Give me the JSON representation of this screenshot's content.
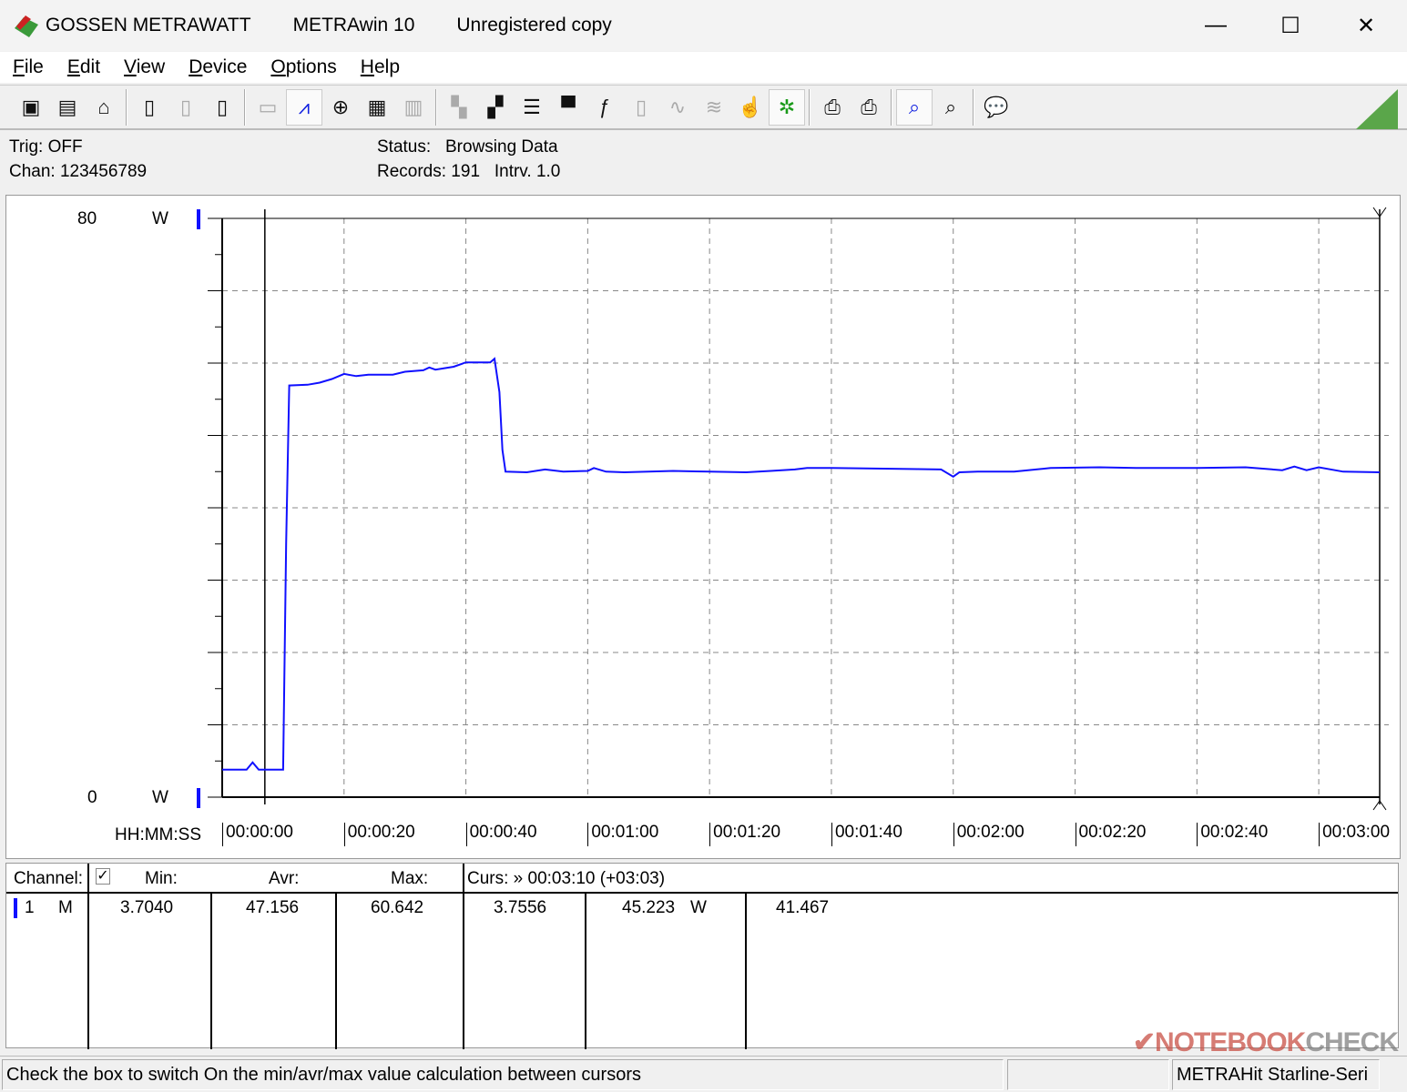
{
  "title": {
    "brand": "GOSSEN METRAWATT",
    "app": "METRAwin 10",
    "license": "Unregistered copy"
  },
  "window_controls": {
    "minimize": "—",
    "maximize": "☐",
    "close": "✕"
  },
  "menu": [
    "File",
    "Edit",
    "View",
    "Device",
    "Options",
    "Help"
  ],
  "toolbar": [
    {
      "icon": "save-icon",
      "glyph": "▣"
    },
    {
      "icon": "save-as-icon",
      "glyph": "▤"
    },
    {
      "icon": "open-icon",
      "glyph": "⌂"
    },
    "sep",
    {
      "icon": "device-read-icon",
      "glyph": "▯"
    },
    {
      "icon": "device-export-icon",
      "glyph": "▯",
      "disabled": true
    },
    {
      "icon": "device-memory-icon",
      "glyph": "▯"
    },
    "sep",
    {
      "icon": "numeric-display-icon",
      "glyph": "▭",
      "disabled": true
    },
    {
      "icon": "yt-chart-icon",
      "glyph": "⩘",
      "active": true,
      "color": "blue"
    },
    {
      "icon": "xy-chart-icon",
      "glyph": "⊕"
    },
    {
      "icon": "table-icon",
      "glyph": "▦"
    },
    {
      "icon": "histogram-icon",
      "glyph": "▥",
      "disabled": true
    },
    "sep",
    {
      "icon": "channel-settings-icon",
      "glyph": "▚",
      "disabled": true
    },
    {
      "icon": "channel-config-icon",
      "glyph": "▞"
    },
    {
      "icon": "list-settings-icon",
      "glyph": "☰"
    },
    {
      "icon": "display-settings-icon",
      "glyph": "▀"
    },
    {
      "icon": "formula-icon",
      "glyph": "ƒ"
    },
    {
      "icon": "meter-icon",
      "glyph": "▯",
      "disabled": true
    },
    {
      "icon": "signal-icon",
      "glyph": "∿",
      "disabled": true
    },
    {
      "icon": "signal-multi-icon",
      "glyph": "≋",
      "disabled": true
    },
    {
      "icon": "hand-cursor-icon",
      "glyph": "☝"
    },
    {
      "icon": "bug-icon",
      "glyph": "✲",
      "active": true,
      "color": "green"
    },
    "sep",
    {
      "icon": "print-icon",
      "glyph": "⎙"
    },
    {
      "icon": "print-preview-icon",
      "glyph": "⎙"
    },
    "sep",
    {
      "icon": "zoom-wave-icon",
      "glyph": "⌕",
      "active": true,
      "color": "blue"
    },
    {
      "icon": "zoom-icon",
      "glyph": "⌕"
    },
    "sep",
    {
      "icon": "comment-icon",
      "glyph": "💬"
    }
  ],
  "info": {
    "trig": "Trig: OFF",
    "chan": "Chan:  123456789",
    "status_label": "Status:",
    "status_value": "Browsing Data",
    "records": "Records: 191",
    "interval": "Intrv. 1.0"
  },
  "chart_data": {
    "type": "line",
    "ylim": [
      0,
      80
    ],
    "y_tick_labels": [
      "80",
      "0"
    ],
    "y_unit": "W",
    "xlabel": "HH:MM:SS",
    "x_tick_labels": [
      "00:00:00",
      "00:00:20",
      "00:00:40",
      "00:01:00",
      "00:01:20",
      "00:01:40",
      "00:02:00",
      "00:02:20",
      "00:02:40",
      "00:03:00"
    ],
    "xlim_seconds": [
      0,
      190
    ],
    "grid": true,
    "line_color": "#1010ff",
    "cursors_seconds": [
      7,
      190
    ],
    "points": [
      [
        0,
        3.8
      ],
      [
        4,
        3.8
      ],
      [
        5,
        4.8
      ],
      [
        6,
        3.8
      ],
      [
        10,
        3.8
      ],
      [
        10.5,
        35
      ],
      [
        11,
        56.9
      ],
      [
        14,
        57.0
      ],
      [
        16,
        57.3
      ],
      [
        18,
        57.8
      ],
      [
        20,
        58.5
      ],
      [
        22,
        58.2
      ],
      [
        24,
        58.4
      ],
      [
        28,
        58.4
      ],
      [
        30,
        58.8
      ],
      [
        33,
        59.0
      ],
      [
        34,
        59.4
      ],
      [
        35,
        59.1
      ],
      [
        38,
        59.5
      ],
      [
        40,
        60.1
      ],
      [
        44,
        60.1
      ],
      [
        44.7,
        60.6
      ],
      [
        45.5,
        56
      ],
      [
        46,
        48
      ],
      [
        46.5,
        45.0
      ],
      [
        50,
        44.9
      ],
      [
        53,
        45.3
      ],
      [
        56,
        45.0
      ],
      [
        60,
        45.1
      ],
      [
        61,
        45.5
      ],
      [
        63,
        45.0
      ],
      [
        66,
        44.9
      ],
      [
        70,
        45.0
      ],
      [
        74,
        45.1
      ],
      [
        80,
        45.0
      ],
      [
        86,
        44.9
      ],
      [
        90,
        45.1
      ],
      [
        94,
        45.3
      ],
      [
        96,
        45.5
      ],
      [
        100,
        45.5
      ],
      [
        110,
        45.4
      ],
      [
        118,
        45.3
      ],
      [
        120,
        44.3
      ],
      [
        121,
        44.9
      ],
      [
        124,
        45.0
      ],
      [
        130,
        45.0
      ],
      [
        136,
        45.5
      ],
      [
        144,
        45.6
      ],
      [
        150,
        45.5
      ],
      [
        160,
        45.5
      ],
      [
        168,
        45.6
      ],
      [
        174,
        45.2
      ],
      [
        176,
        45.7
      ],
      [
        178,
        45.2
      ],
      [
        180,
        45.6
      ],
      [
        184,
        45.0
      ],
      [
        190,
        44.9
      ]
    ]
  },
  "table": {
    "headers": {
      "channel": "Channel:",
      "min": "Min:",
      "avr": "Avr:",
      "max": "Max:",
      "cursor": "Curs: » 00:03:10 (+03:03)"
    },
    "checkbox_checked": true,
    "rows": [
      {
        "channel": "1",
        "mode": "M",
        "min": "3.7040",
        "avr": "47.156",
        "max": "60.642",
        "cur1": "3.7556",
        "cur2": "45.223",
        "unit": "W",
        "diff": "41.467",
        "color": "#1010ff"
      }
    ]
  },
  "statusbar": {
    "hint": "Check the box to switch On the min/avr/max value calculation between cursors",
    "device": "METRAHit Starline-Seri"
  },
  "watermark": {
    "a": "NOTEBOOK",
    "b": "CHECK"
  }
}
